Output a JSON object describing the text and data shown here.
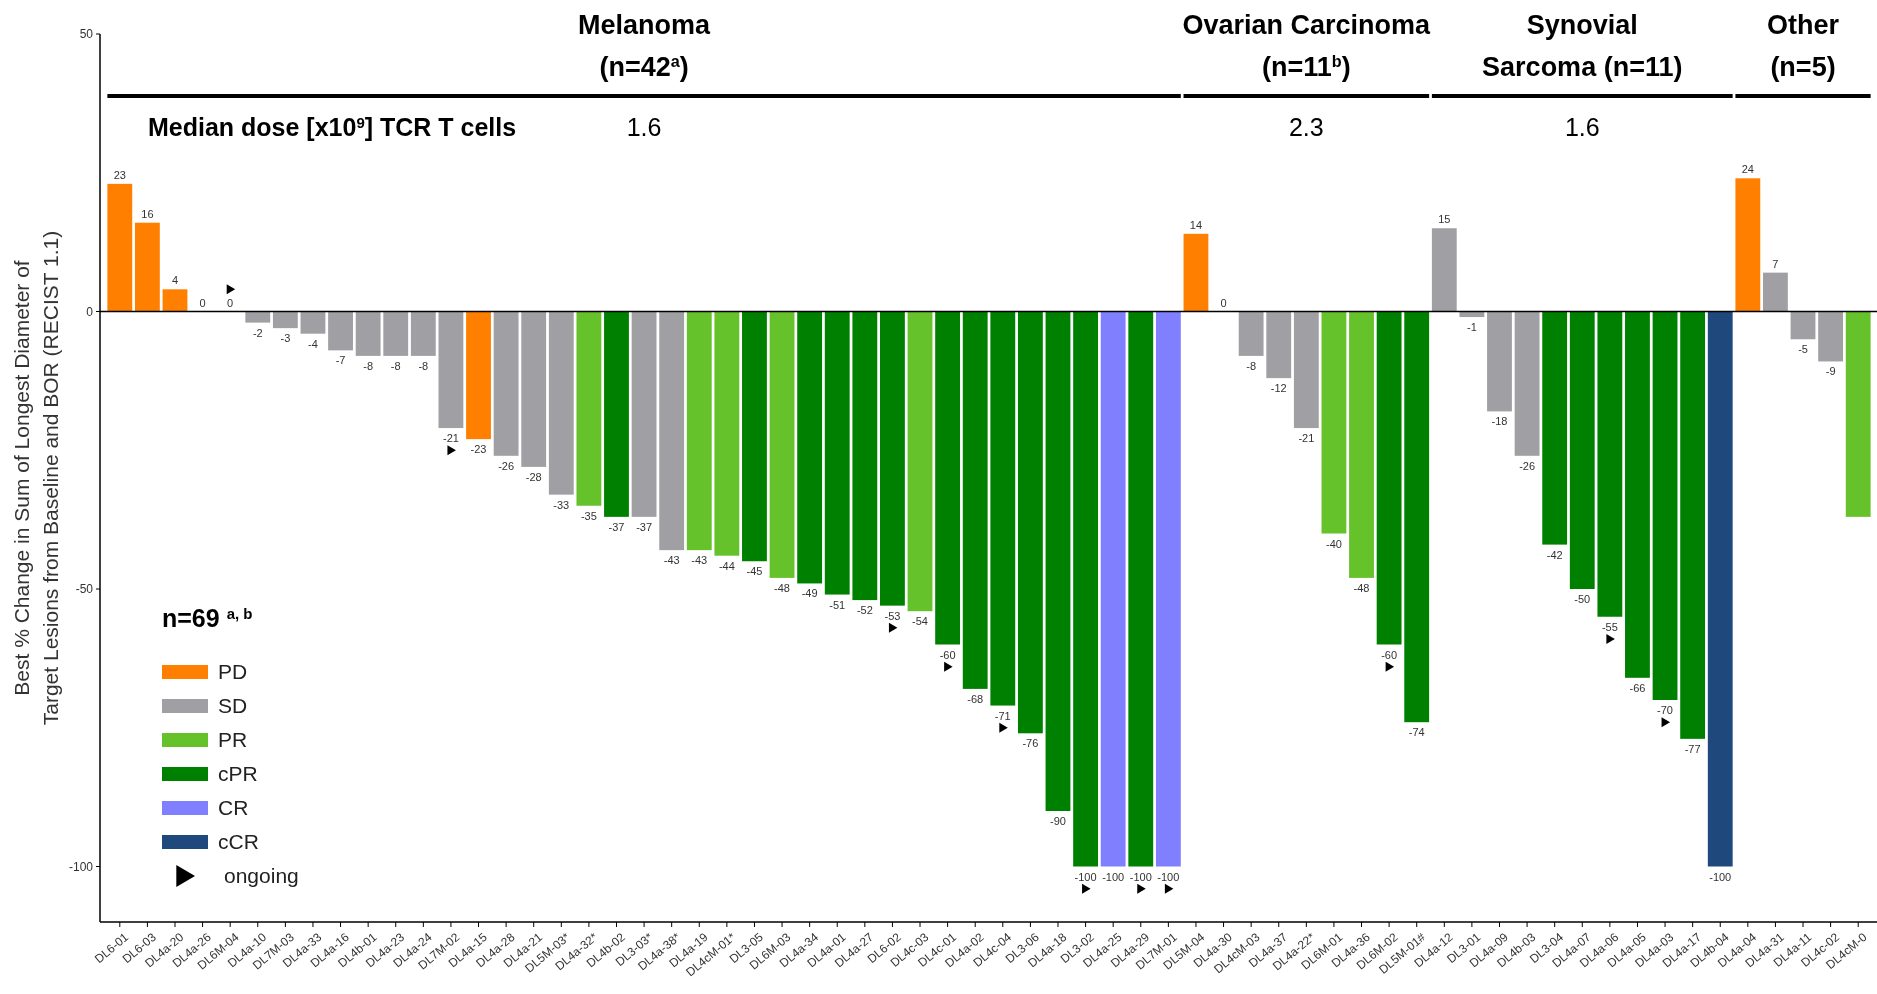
{
  "chart_data": {
    "type": "bar",
    "stacked": true,
    "ylabel": "Best % Change in Sum of Longest Diameter of\nTarget Lesions from Baseline and BOR (RECIST 1.1)",
    "categories": [
      "DL6-01",
      "DL6-03",
      "DL4a-20",
      "DL4a-26",
      "DL6M-04",
      "DL4a-10",
      "DL7M-03",
      "DL4a-33",
      "DL4a-16",
      "DL4b-01",
      "DL4a-23",
      "DL4a-24",
      "DL7M-02",
      "DL4a-15",
      "DL4a-28",
      "DL4a-21",
      "DL5M-03*",
      "DL4a-32*",
      "DL4b-02",
      "DL3-03*",
      "DL4a-38*",
      "DL4a-19",
      "DL4cM-01*",
      "DL3-05",
      "DL6M-03",
      "DL4a-34",
      "DL4a-01",
      "DL4a-27",
      "DL6-02",
      "DL4c-03",
      "DL4c-01",
      "DL4a-02",
      "DL4c-04",
      "DL3-06",
      "DL4a-18",
      "DL3-02",
      "DL4a-25",
      "DL4a-29",
      "DL7M-01",
      "DL5M-04",
      "DL4a-30",
      "DL4cM-03",
      "DL4a-37",
      "DL4a-22*",
      "DL6M-01",
      "DL4a-36",
      "DL6M-02",
      "DL5M-01#",
      "DL4a-12",
      "DL3-01",
      "DL4a-09",
      "DL4b-03",
      "DL3-04",
      "DL4a-07",
      "DL4a-06",
      "DL4a-05",
      "DL4a-03",
      "DL4a-17",
      "DL4b-04",
      "DL4a-04",
      "DL4a-31",
      "DL4a-11",
      "DL4c-02",
      "DL4cM-0"
    ],
    "series": [
      {
        "name": "PD",
        "color": "#ff8000",
        "values": [
          23,
          16,
          4,
          null,
          null,
          null,
          null,
          null,
          null,
          null,
          null,
          null,
          null,
          -23,
          null,
          null,
          null,
          null,
          null,
          null,
          null,
          null,
          null,
          null,
          null,
          null,
          null,
          null,
          null,
          null,
          null,
          null,
          null,
          null,
          null,
          null,
          null,
          null,
          null,
          14,
          null,
          null,
          null,
          null,
          null,
          null,
          null,
          null,
          null,
          null,
          null,
          null,
          null,
          null,
          null,
          null,
          null,
          null,
          null,
          24,
          null,
          null,
          null,
          null
        ],
        "value_labels": [
          "23",
          "16",
          "4",
          null,
          null,
          null,
          null,
          null,
          null,
          null,
          null,
          null,
          null,
          "-23",
          null,
          null,
          null,
          null,
          null,
          null,
          null,
          null,
          null,
          null,
          null,
          null,
          null,
          null,
          null,
          null,
          null,
          null,
          null,
          null,
          null,
          null,
          null,
          null,
          null,
          "14",
          null,
          null,
          null,
          null,
          null,
          null,
          null,
          null,
          null,
          null,
          null,
          null,
          null,
          null,
          null,
          null,
          null,
          null,
          null,
          "24",
          null,
          null,
          null,
          null
        ]
      },
      {
        "name": "SD",
        "color": "#a0a0a4",
        "values": [
          null,
          null,
          null,
          0,
          0,
          -2,
          -3,
          -4,
          -7,
          -8,
          -8,
          -8,
          -21,
          null,
          -26,
          -28,
          -33,
          null,
          null,
          -37,
          -43,
          null,
          null,
          null,
          null,
          null,
          null,
          null,
          null,
          null,
          null,
          null,
          null,
          null,
          null,
          null,
          null,
          null,
          null,
          null,
          0,
          -8,
          -12,
          -21,
          null,
          null,
          null,
          null,
          15,
          -1,
          -18,
          -26,
          null,
          null,
          null,
          null,
          null,
          null,
          null,
          null,
          7,
          -5,
          -9,
          null
        ],
        "value_labels": [
          null,
          null,
          null,
          "0",
          "0",
          "-2",
          "-3",
          "-4",
          "-7",
          "-8",
          "-8",
          "-8",
          "-21",
          null,
          "-26",
          "-28",
          "-33",
          null,
          null,
          "-37",
          "-43",
          null,
          null,
          null,
          null,
          null,
          null,
          null,
          null,
          null,
          null,
          null,
          null,
          null,
          null,
          null,
          null,
          null,
          null,
          null,
          "0",
          "-8",
          "-12",
          "-21",
          null,
          null,
          null,
          null,
          "15",
          "-1",
          "-18",
          "-26",
          null,
          null,
          null,
          null,
          null,
          null,
          null,
          null,
          "7",
          "-5",
          "-9",
          null
        ]
      },
      {
        "name": "PR",
        "color": "#66c22a",
        "values": [
          null,
          null,
          null,
          null,
          null,
          null,
          null,
          null,
          null,
          null,
          null,
          null,
          null,
          null,
          null,
          null,
          null,
          -35,
          null,
          null,
          null,
          -43,
          -44,
          null,
          -48,
          null,
          null,
          null,
          null,
          -54,
          null,
          null,
          null,
          null,
          null,
          null,
          null,
          null,
          null,
          null,
          null,
          null,
          null,
          null,
          -40,
          -48,
          null,
          null,
          null,
          null,
          null,
          null,
          null,
          null,
          null,
          null,
          null,
          null,
          null,
          null,
          null,
          null,
          null,
          -37
        ],
        "value_labels": [
          null,
          null,
          null,
          null,
          null,
          null,
          null,
          null,
          null,
          null,
          null,
          null,
          null,
          null,
          null,
          null,
          null,
          "-35",
          null,
          null,
          null,
          "-43",
          "-44",
          null,
          "-48",
          null,
          null,
          null,
          null,
          "-54",
          null,
          null,
          null,
          null,
          null,
          null,
          null,
          null,
          null,
          null,
          null,
          null,
          null,
          null,
          "-40",
          "-48",
          null,
          null,
          null,
          null,
          null,
          null,
          null,
          null,
          null,
          null,
          null,
          null,
          null,
          null,
          null,
          null,
          null,
          null
        ]
      },
      {
        "name": "cPR",
        "color": "#008000",
        "values": [
          null,
          null,
          null,
          null,
          null,
          null,
          null,
          null,
          null,
          null,
          null,
          null,
          null,
          null,
          null,
          null,
          null,
          null,
          -37,
          null,
          null,
          null,
          null,
          -45,
          null,
          -49,
          -51,
          -52,
          -53,
          null,
          -60,
          -68,
          -71,
          -76,
          -90,
          -100,
          null,
          -100,
          null,
          null,
          null,
          null,
          null,
          null,
          null,
          null,
          -60,
          -74,
          null,
          null,
          null,
          null,
          -42,
          -50,
          -55,
          -66,
          -70,
          -77,
          null,
          null,
          null,
          null,
          null,
          null
        ],
        "value_labels": [
          null,
          null,
          null,
          null,
          null,
          null,
          null,
          null,
          null,
          null,
          null,
          null,
          null,
          null,
          null,
          null,
          null,
          null,
          "-37",
          null,
          null,
          null,
          null,
          "-45",
          null,
          "-49",
          "-51",
          "-52",
          "-53",
          null,
          "-60",
          "-68",
          "-71",
          "-76",
          "-90",
          "-100",
          null,
          "-100",
          null,
          null,
          null,
          null,
          null,
          null,
          null,
          null,
          "-60",
          "-74",
          null,
          null,
          null,
          null,
          "-42",
          "-50",
          "-55",
          "-66",
          "-70",
          "-77",
          null,
          null,
          null,
          null,
          null,
          null
        ]
      },
      {
        "name": "CR",
        "color": "#8080ff",
        "values": [
          null,
          null,
          null,
          null,
          null,
          null,
          null,
          null,
          null,
          null,
          null,
          null,
          null,
          null,
          null,
          null,
          null,
          null,
          null,
          null,
          null,
          null,
          null,
          null,
          null,
          null,
          null,
          null,
          null,
          null,
          null,
          null,
          null,
          null,
          null,
          null,
          -100,
          null,
          -100,
          null,
          null,
          null,
          null,
          null,
          null,
          null,
          null,
          null,
          null,
          null,
          null,
          null,
          null,
          null,
          null,
          null,
          null,
          null,
          null,
          null,
          null,
          null,
          null,
          null
        ],
        "value_labels": [
          null,
          null,
          null,
          null,
          null,
          null,
          null,
          null,
          null,
          null,
          null,
          null,
          null,
          null,
          null,
          null,
          null,
          null,
          null,
          null,
          null,
          null,
          null,
          null,
          null,
          null,
          null,
          null,
          null,
          null,
          null,
          null,
          null,
          null,
          null,
          null,
          "-100",
          null,
          "-100",
          null,
          null,
          null,
          null,
          null,
          null,
          null,
          null,
          null,
          null,
          null,
          null,
          null,
          null,
          null,
          null,
          null,
          null,
          null,
          null,
          null,
          null,
          null,
          null,
          null
        ]
      },
      {
        "name": "cCR",
        "color": "#1f497d",
        "values": [
          null,
          null,
          null,
          null,
          null,
          null,
          null,
          null,
          null,
          null,
          null,
          null,
          null,
          null,
          null,
          null,
          null,
          null,
          null,
          null,
          null,
          null,
          null,
          null,
          null,
          null,
          null,
          null,
          null,
          null,
          null,
          null,
          null,
          null,
          null,
          null,
          null,
          null,
          null,
          null,
          null,
          null,
          null,
          null,
          null,
          null,
          null,
          null,
          null,
          null,
          null,
          null,
          null,
          null,
          null,
          null,
          null,
          null,
          -100,
          null,
          null,
          null,
          null,
          null
        ],
        "value_labels": [
          null,
          null,
          null,
          null,
          null,
          null,
          null,
          null,
          null,
          null,
          null,
          null,
          null,
          null,
          null,
          null,
          null,
          null,
          null,
          null,
          null,
          null,
          null,
          null,
          null,
          null,
          null,
          null,
          null,
          null,
          null,
          null,
          null,
          null,
          null,
          null,
          null,
          null,
          null,
          null,
          null,
          null,
          null,
          null,
          null,
          null,
          null,
          null,
          null,
          null,
          null,
          null,
          null,
          null,
          null,
          null,
          null,
          null,
          "-100",
          null,
          null,
          null,
          null,
          null
        ]
      },
      {
        "name": "ongoing",
        "type": "scatter",
        "color": "#000000",
        "x": [
          "DL6M-04",
          "DL7M-02",
          "DL6-02",
          "DL4c-01",
          "DL4c-04",
          "DL3-02",
          "DL4a-29",
          "DL7M-01",
          "DL6M-02",
          "DL4a-06",
          "DL4a-03"
        ],
        "values": [
          4,
          -25,
          -57,
          -64,
          -75,
          -104,
          -104,
          -104,
          -64,
          -59,
          -74
        ]
      }
    ],
    "marker": "triangle",
    "ylim": [
      -110,
      50
    ],
    "yticks": [
      -100,
      -50,
      0,
      50
    ],
    "ref_lines": [
      {
        "axis": "y",
        "value": 0,
        "color": "#000000"
      }
    ],
    "legend": "bottom left",
    "annotations": [
      "Melanoma\n(n=42$^{a}$)",
      "Ovarian Carcinoma\n(n=11$^{b}$)",
      "Synovial\nSarcoma (n=11)",
      "Other\n(n=5)",
      "Median dose [x10$^{9}$] TCR T cells",
      "1.6",
      "2.3",
      "1.6",
      "n=69 $^{a, b}$"
    ]
  }
}
